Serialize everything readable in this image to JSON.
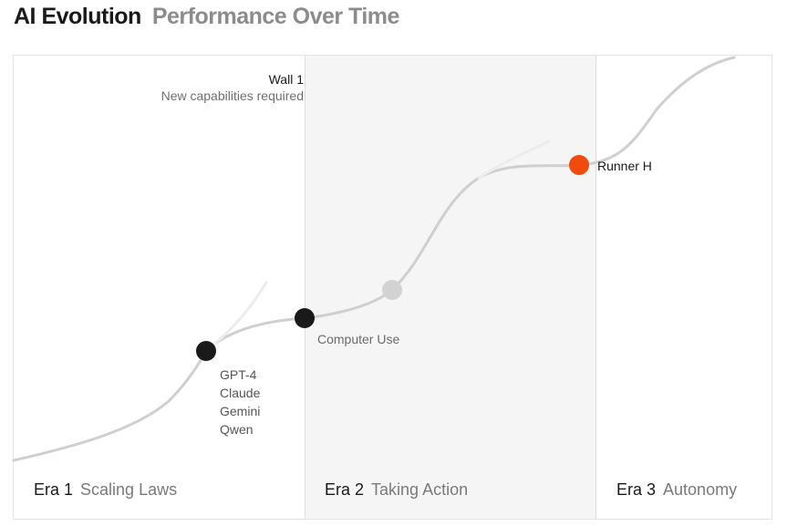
{
  "header": {
    "title": "AI Evolution",
    "subtitle": "Performance Over Time"
  },
  "wall": {
    "title": "Wall 1",
    "subtitle": "New capabilities required"
  },
  "points": {
    "models": [
      "GPT-4",
      "Claude",
      "Gemini",
      "Qwen"
    ],
    "computer_use": "Computer Use",
    "runner": "Runner H"
  },
  "eras": [
    {
      "number": "Era 1",
      "name": "Scaling Laws"
    },
    {
      "number": "Era 2",
      "name": "Taking Action"
    },
    {
      "number": "Era 3",
      "name": "Autonomy"
    }
  ],
  "colors": {
    "curve": "#cfcfcf",
    "point_dark": "#1a1a1a",
    "point_light": "#d2d2d2",
    "point_accent": "#f04a0c",
    "era2_background": "#f5f5f5"
  }
}
